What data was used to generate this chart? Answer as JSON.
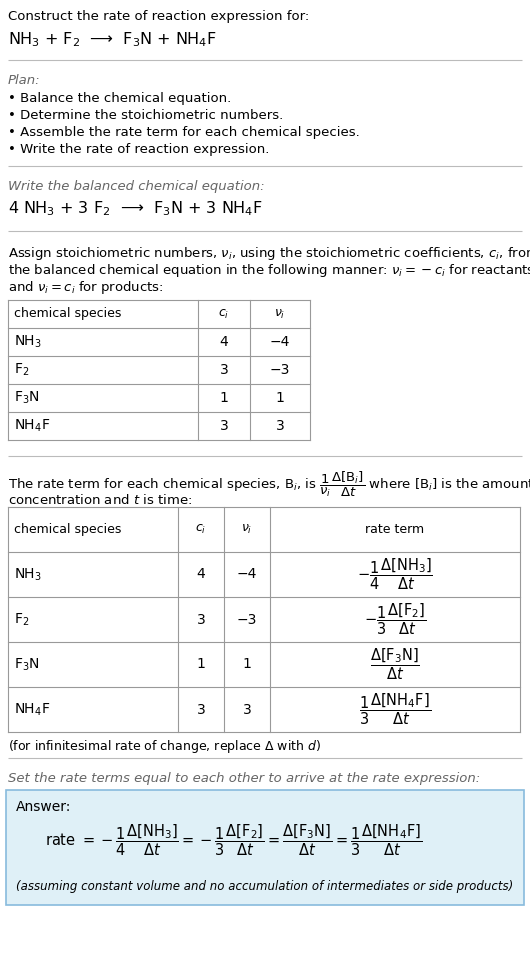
{
  "bg_color": "#ffffff",
  "text_color": "#000000",
  "gray_color": "#666666",
  "light_blue_bg": "#dff0f7",
  "table_border_color": "#999999",
  "line_color": "#bbbbbb",
  "title_line1": "Construct the rate of reaction expression for:",
  "reaction_unbalanced": "NH$_3$ + F$_2$  ⟶  F$_3$N + NH$_4$F",
  "plan_title": "Plan:",
  "plan_items": [
    "• Balance the chemical equation.",
    "• Determine the stoichiometric numbers.",
    "• Assemble the rate term for each chemical species.",
    "• Write the rate of reaction expression."
  ],
  "balanced_eq_label": "Write the balanced chemical equation:",
  "balanced_eq": "4 NH$_3$ + 3 F$_2$  ⟶  F$_3$N + 3 NH$_4$F",
  "stoich_intro_lines": [
    "Assign stoichiometric numbers, $\\nu_i$, using the stoichiometric coefficients, $c_i$, from",
    "the balanced chemical equation in the following manner: $\\nu_i = -c_i$ for reactants",
    "and $\\nu_i = c_i$ for products:"
  ],
  "table1_headers": [
    "chemical species",
    "$c_i$",
    "$\\nu_i$"
  ],
  "table1_rows": [
    [
      "NH$_3$",
      "4",
      "−4"
    ],
    [
      "F$_2$",
      "3",
      "−3"
    ],
    [
      "F$_3$N",
      "1",
      "1"
    ],
    [
      "NH$_4$F",
      "3",
      "3"
    ]
  ],
  "rate_term_intro1": "The rate term for each chemical species, B$_i$, is $\\dfrac{1}{\\nu_i}\\dfrac{\\Delta[\\mathrm{B}_i]}{\\Delta t}$ where [B$_i$] is the amount",
  "rate_term_intro2": "concentration and $t$ is time:",
  "table2_headers": [
    "chemical species",
    "$c_i$",
    "$\\nu_i$",
    "rate term"
  ],
  "table2_rows": [
    [
      "NH$_3$",
      "4",
      "−4",
      "$-\\dfrac{1}{4}\\dfrac{\\Delta[\\mathrm{NH_3}]}{\\Delta t}$"
    ],
    [
      "F$_2$",
      "3",
      "−3",
      "$-\\dfrac{1}{3}\\dfrac{\\Delta[\\mathrm{F_2}]}{\\Delta t}$"
    ],
    [
      "F$_3$N",
      "1",
      "1",
      "$\\dfrac{\\Delta[\\mathrm{F_3N}]}{\\Delta t}$"
    ],
    [
      "NH$_4$F",
      "3",
      "3",
      "$\\dfrac{1}{3}\\dfrac{\\Delta[\\mathrm{NH_4F}]}{\\Delta t}$"
    ]
  ],
  "infinitesimal_note": "(for infinitesimal rate of change, replace Δ with $d$)",
  "set_rate_label": "Set the rate terms equal to each other to arrive at the rate expression:",
  "answer_label": "Answer:",
  "answer_eq": "rate $= -\\dfrac{1}{4}\\dfrac{\\Delta[\\mathrm{NH_3}]}{\\Delta t} = -\\dfrac{1}{3}\\dfrac{\\Delta[\\mathrm{F_2}]}{\\Delta t} = \\dfrac{\\Delta[\\mathrm{F_3N}]}{\\Delta t} = \\dfrac{1}{3}\\dfrac{\\Delta[\\mathrm{NH_4F}]}{\\Delta t}$",
  "answer_note": "(assuming constant volume and no accumulation of intermediates or side products)"
}
